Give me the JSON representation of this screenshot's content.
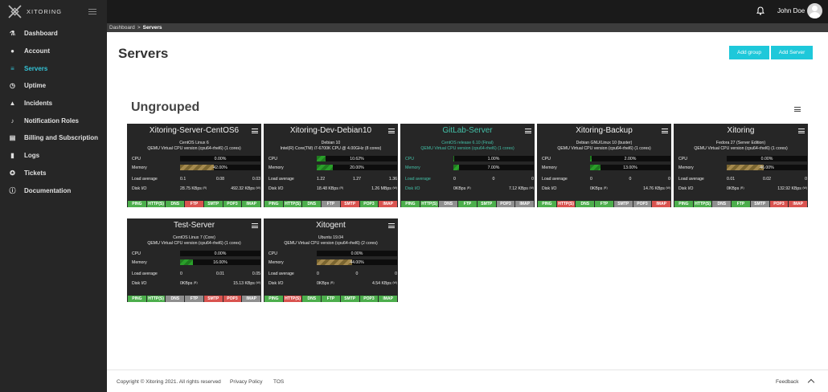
{
  "brand": {
    "name": "XITORING"
  },
  "sidebar": {
    "items": [
      {
        "label": "Dashboard",
        "icon": "flask-icon"
      },
      {
        "label": "Account",
        "icon": "user-icon"
      },
      {
        "label": "Servers",
        "icon": "server-icon",
        "active": true
      },
      {
        "label": "Uptime",
        "icon": "stopwatch-icon"
      },
      {
        "label": "Incidents",
        "icon": "warning-icon"
      },
      {
        "label": "Notification Roles",
        "icon": "bell-icon"
      },
      {
        "label": "Billing and Subscription",
        "icon": "invoice-icon"
      },
      {
        "label": "Logs",
        "icon": "file-icon"
      },
      {
        "label": "Tickets",
        "icon": "lifebuoy-icon"
      },
      {
        "label": "Documentation",
        "icon": "info-icon"
      }
    ]
  },
  "topbar": {
    "user": "John Doe"
  },
  "breadcrumb": {
    "parent": "Dashboard",
    "current": "Servers"
  },
  "page": {
    "title": "Servers",
    "add_group": "Add group",
    "add_server": "Add Server",
    "group_title": "Ungrouped"
  },
  "labels": {
    "cpu": "CPU",
    "memory": "Memory",
    "load": "Load average",
    "disk": "Disk I/O",
    "read": "(R)",
    "write": "(W)"
  },
  "service_names": [
    "PING",
    "HTTP(S)",
    "DNS",
    "FTP",
    "SMTP",
    "POP3",
    "IMAP"
  ],
  "servers": [
    {
      "name": "Xitoring-Server-CentOS6",
      "os": "CentOS Linux 6",
      "cpu_info": "QEMU Virtual CPU version (cpu64-rhel6) (1 cores)",
      "cpu": "0.00%",
      "cpu_pct": 0,
      "mem": "42.00%",
      "mem_pct": 42,
      "mem_style": "gold",
      "load": [
        "0.1",
        "0.08",
        "0.03"
      ],
      "disk_r": "28.75 KBps",
      "disk_w": "492.32 KBps",
      "services": [
        "ok",
        "ok",
        "ok",
        "fail",
        "ok",
        "ok",
        "ok"
      ],
      "highlight": false
    },
    {
      "name": "Xitoring-Dev-Debian10",
      "os": "Debian 10",
      "cpu_info": "Intel(R) Core(TM) i7-6700K CPU @ 4.00GHz (8 cores)",
      "cpu": "10.62%",
      "cpu_pct": 10.62,
      "mem": "20.00%",
      "mem_pct": 20,
      "mem_style": "green",
      "load": [
        "1.22",
        "1.27",
        "1.36"
      ],
      "disk_r": "18.48 KBps",
      "disk_w": "1.26 MBps",
      "services": [
        "ok",
        "ok",
        "ok",
        "off",
        "fail",
        "ok",
        "fail"
      ],
      "highlight": false
    },
    {
      "name": "GitLab-Server",
      "os": "CentOS release 6.10 (Final)",
      "cpu_info": "QEMU Virtual CPU version (cpu64-rhel6) (1 cores)",
      "cpu": "1.00%",
      "cpu_pct": 1,
      "mem": "7.00%",
      "mem_pct": 7,
      "mem_style": "green",
      "load": [
        "0",
        "0",
        "0"
      ],
      "disk_r": "0KBps",
      "disk_w": "7.12 KBps",
      "services": [
        "ok",
        "ok",
        "off",
        "ok",
        "ok",
        "off",
        "off"
      ],
      "highlight": true
    },
    {
      "name": "Xitoring-Backup",
      "os": "Debian GNU/Linux 10 (buster)",
      "cpu_info": "QEMU Virtual CPU version (cpu64-rhel6) (1 cores)",
      "cpu": "2.00%",
      "cpu_pct": 2,
      "mem": "13.00%",
      "mem_pct": 13,
      "mem_style": "green",
      "load": [
        "0",
        "0",
        "0"
      ],
      "disk_r": "0KBps",
      "disk_w": "14.76 KBps",
      "services": [
        "ok",
        "fail",
        "ok",
        "ok",
        "off",
        "off",
        "fail"
      ],
      "highlight": false
    },
    {
      "name": "Xitoring",
      "os": "Fedora 27 (Server Edition)",
      "cpu_info": "QEMU Virtual CPU version (cpu64-rhel6) (1 cores)",
      "cpu": "0.00%",
      "cpu_pct": 0,
      "mem": "46.00%",
      "mem_pct": 46,
      "mem_style": "gold",
      "load": [
        "0.01",
        "0.02",
        "0"
      ],
      "disk_r": "0KBps",
      "disk_w": "132.92 KBps",
      "services": [
        "ok",
        "ok",
        "off",
        "ok",
        "off",
        "fail",
        "fail"
      ],
      "highlight": false
    },
    {
      "name": "Test-Server",
      "os": "CentOS Linux 7 (Core)",
      "cpu_info": "QEMU Virtual CPU version (cpu64-rhel6) (1 cores)",
      "cpu": "0.00%",
      "cpu_pct": 0,
      "mem": "16.00%",
      "mem_pct": 16,
      "mem_style": "green",
      "load": [
        "0",
        "0.01",
        "0.05"
      ],
      "disk_r": "0KBps",
      "disk_w": "15.13 KBps",
      "services": [
        "ok",
        "ok",
        "off",
        "off",
        "fail",
        "fail",
        "off"
      ],
      "highlight": false
    },
    {
      "name": "Xitogent",
      "os": "Ubuntu 19.04",
      "cpu_info": "QEMU Virtual CPU version (cpu64-rhel6) (2 cores)",
      "cpu": "0.00%",
      "cpu_pct": 0,
      "mem": "44.00%",
      "mem_pct": 44,
      "mem_style": "gold",
      "load": [
        "0",
        "0",
        "0"
      ],
      "disk_r": "0KBps",
      "disk_w": "4.54 KBps",
      "services": [
        "ok",
        "fail",
        "ok",
        "ok",
        "ok",
        "ok",
        "ok"
      ],
      "highlight": false
    }
  ],
  "footer": {
    "copyright": "Copyright © Xitoring 2021. All rights reserved",
    "privacy": "Privacy Policy",
    "tos": "TOS",
    "feedback": "Feedback"
  }
}
